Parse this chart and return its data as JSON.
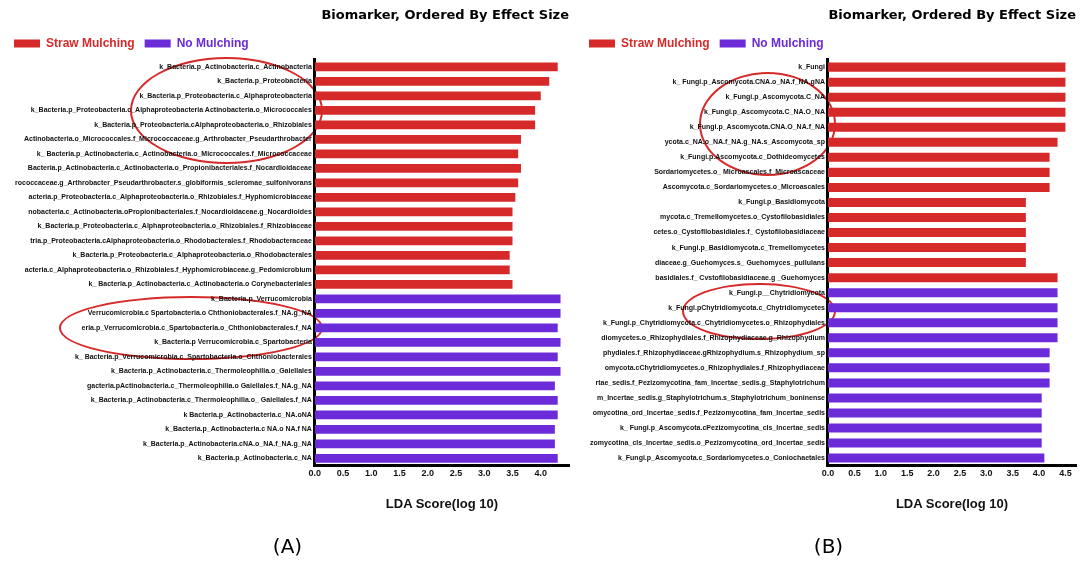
{
  "chart_data": [
    {
      "type": "bar",
      "orientation": "horizontal",
      "title": "Biomarker, Ordered By Effect Size",
      "xlabel": "LDA Score(log 10)",
      "legend": "top left",
      "grid": false,
      "categories": [
        "k_Bacteria.p_Actinobacteria.c_Actinobacteria",
        "k_Bacteria.p_Proteobacteria",
        "k_Bacteria.p_Proteobacteria.c_Alphaproteobacteria",
        "k_Bacteria.p_Proteobacteria.c_Alphaproteobacteria Actinobacteria.o_Micrococcales",
        "k_Bacteria.p_Proteobacteria.cAlphaproteobacteria.o_Rhizobiales",
        "Actinobacteria.o_Micrococcales.f_Micrococcaceae.g_Arthrobacter_Pseudarthrobacter",
        "k_ Bacteria.p_Actinobacteria.c_Actinobacteria.o_Micrococcales.f_Micrococcaceae",
        "Bacteria.p_Actinobacteria.c_Actinobacteria.o_Propionibacteriales.f_Nocardioidaceae",
        "rococcaceae.g_Arthrobacter_Pseudarthrobacter.s_globiformis_scleromae_sulfonivorans",
        "acteria.p_Proteobacteria.c_Alphaproteobacteria.o_Rhizobiales.f_Hyphomicrobiaceae",
        "nobacteria.c_Actinobacteria.oPropionibacteriales.f_Nocardioidaceae.g_Nocardioides",
        "k_Bacteria.p_Proteobacteria.c_Alphaproteobacteria.o_Rhizobiales.f_Rhizobiaceae",
        "tria.p_Proteobacteria.cAlphaproteobacteria.o_Rhodobacterales.f_Rhodobacteraceae",
        "k_Bacteria.p_Proteobacteria.c_Alphaproteobacteria.o_Rhodobacterales",
        "acteria.c_Alphaproteobacteria.o_Rhizobiales.f_Hyphomicrobiaceae.g_Pedomicrobium",
        "k_ Bacteria.p_Actinobacteria.c_Actinobacteria.o Corynebacteriales",
        "k_Bacteria.p_Verrucomicrobia",
        "Verrucomicrobia.c Spartobacteria.o Chthoniobacterales.f_NA.g_NA",
        "eria.p_Verrucomicrobia.c_Spartobacteria.o_Chthoniobacterales.f_NA",
        "k_Bacteria.p Verrucomicrobia.c_Spartobacteria",
        "k_ Bacteria.p_Verrucomicrobia.c_Spartobacteria.o_Chthoniobacterales",
        "k_Bacteria.p_Actinobacteria.c_Thermoleophilia.o_Gaiellales",
        "gacteria.pActinobacteria.c_Thermoleophilia.o Gaiellales.f_NA.g_NA",
        "k_Bacteria.p_Actinobacteria.c_Thermoleophilia.o_ Gaiellales.f_NA",
        "k Bacteria.p_Actinobacteria.c_NA.oNA",
        "k_Bacteria.p_Actinobacteria.c NA.o NA.f NA",
        "k_Bacteria.p_Actinobacteria.cNA.o_NA.f_NA.g_NA",
        "k_Bacteria.p_Actinobacteria.c_NA"
      ],
      "series": [
        {
          "name": "Straw Mulching",
          "color": "#d62a2a",
          "values": [
            4.3,
            4.15,
            4.0,
            3.9,
            3.9,
            3.65,
            3.6,
            3.65,
            3.6,
            3.55,
            3.5,
            3.5,
            3.5,
            3.45,
            3.45,
            3.5,
            null,
            null,
            null,
            null,
            null,
            null,
            null,
            null,
            null,
            null,
            null,
            null
          ]
        },
        {
          "name": "No Mulching",
          "color": "#6c2bd9",
          "values": [
            null,
            null,
            null,
            null,
            null,
            null,
            null,
            null,
            null,
            null,
            null,
            null,
            null,
            null,
            null,
            null,
            4.35,
            4.35,
            4.3,
            4.35,
            4.3,
            4.35,
            4.25,
            4.3,
            4.3,
            4.25,
            4.25,
            4.3
          ]
        }
      ],
      "xlim": [
        0,
        4.5
      ],
      "xticks": [
        {
          "value": 0,
          "label": "0.0"
        },
        0.5,
        {
          "value": 1,
          "label": "1.0"
        },
        1.5,
        {
          "value": 2,
          "label": "2.0"
        },
        2.5,
        {
          "value": 3,
          "label": "3.0"
        },
        3.5,
        {
          "value": 4,
          "label": "4.0"
        }
      ],
      "annotations": [
        "(A)"
      ]
    },
    {
      "type": "bar",
      "orientation": "horizontal",
      "title": "Biomarker, Ordered By Effect Size",
      "xlabel": "LDA Score(log 10)",
      "legend": "top left",
      "grid": false,
      "categories": [
        "k_Fungi",
        "k_ Fungi.p_Ascomycota.CNA.o_NA.f_NA.gNA",
        "k_Fungi.p_Ascomycota.C_NA",
        "k_Fungi.p_Ascomycota.C_NA.O_NA",
        "k_Fungi.p_Ascomycota.CNA.O_NA.f_NA",
        "ycota.c_NA.o_NA.f_NA.g_NA.s_Ascomycota_sp",
        "k_Fungi.p.Ascomycota.c_Dothideomycetes",
        "Sordariomycetes.o_ Microascales.f_Microascaceae",
        "Ascomycota.c_Sordariomycetes.o_Microascales",
        "k_Fungi.p_Basidiomycota",
        "mycota.c_Tremellomycetes.o_Cystofilobasidiales",
        "cetes.o_Cystofilobasidiales.f_ Cystofilobasidiaceae",
        "k_Fungi.p_Basidiomycota.c_Tremellomycetes",
        "diaceae.g_Guehomyces.s_ Guehomyces_pullulans",
        "basidiales.f_ Cvstofilobasidiaceae.g _Guehomyces",
        "k_Fungi.p__Chytridiomycota",
        "k_Fungi.pChytridiomycota.c_Chytridiomycetes",
        "k_Fungi.p_Chytridiomycota.c_Chytridiomycetes.o_Rhizophydiales",
        "diomycetes.o_Rhizophydiales.f_Rhizophydiaceae.g_Rhizophydium",
        "phydiales.f_Rhizophydiaceae.gRhizophydium.s_Rhizophydium_sp",
        "omycota.cChytridiomycetes.o_Rhizophydiales.f_Rhizophydiaceae",
        "rtae_sedis.f_Pezizomycotina_fam_Incertae_sedis.g_Staphylotrichum",
        "m_Incertae_sedis.g_Staphylotrichum.s_Staphylotrichum_boninense",
        "omycotina_ord_Incertae_sedis.f_Pezizomycotina_fam_Incertae_sedis",
        "k_ Fungi.p_Ascomycota.cPezizomycotina_cls_Incertae_sedis",
        "zomycotina_cls_Incertae_sedis.o_Pezizomycotina_ord_Incertae_sedis",
        "k_Fungi.p_Ascomycota.c_Sordariomycetes.o_Coniochaetales"
      ],
      "series": [
        {
          "name": "Straw Mulching",
          "color": "#d62a2a",
          "values": [
            4.5,
            4.5,
            4.5,
            4.5,
            4.5,
            4.35,
            4.2,
            4.2,
            4.2,
            3.75,
            3.75,
            3.75,
            3.75,
            3.75,
            4.35,
            null,
            null,
            null,
            null,
            null,
            null,
            null,
            null,
            null,
            null,
            null,
            null
          ]
        },
        {
          "name": "No Mulching",
          "color": "#6c2bd9",
          "values": [
            null,
            null,
            null,
            null,
            null,
            null,
            null,
            null,
            null,
            null,
            null,
            null,
            null,
            null,
            null,
            4.35,
            4.35,
            4.35,
            4.35,
            4.2,
            4.2,
            4.2,
            4.05,
            4.05,
            4.05,
            4.05,
            4.1
          ]
        }
      ],
      "xlim": [
        0,
        4.7
      ],
      "xticks": [
        {
          "value": 0,
          "label": "0.0"
        },
        0.5,
        {
          "value": 1,
          "label": "1.0"
        },
        1.5,
        {
          "value": 2,
          "label": "2.0"
        },
        2.5,
        {
          "value": 3,
          "label": "3.0"
        },
        3.5,
        {
          "value": 4,
          "label": "4.0"
        },
        4.5
      ],
      "annotations": [
        "(B)"
      ]
    }
  ]
}
